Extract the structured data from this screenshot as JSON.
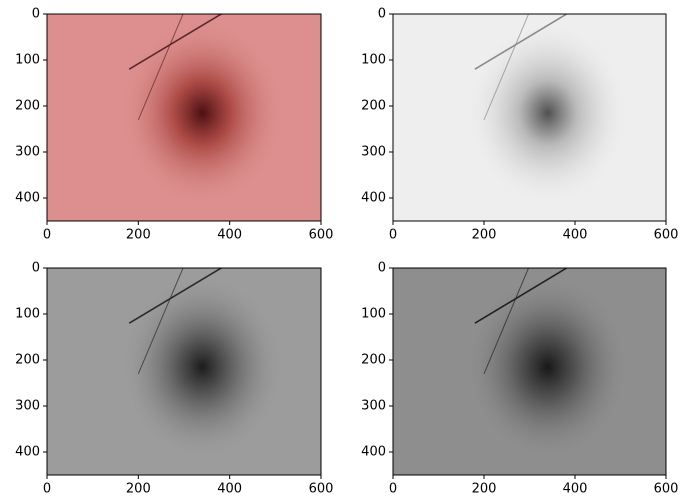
{
  "chart_data": [
    {
      "type": "image",
      "xlim": [
        0,
        600
      ],
      "ylim": [
        450,
        0
      ],
      "xticks": [
        0,
        200,
        400,
        600
      ],
      "yticks": [
        0,
        100,
        200,
        300,
        400
      ]
    },
    {
      "type": "image",
      "xlim": [
        0,
        600
      ],
      "ylim": [
        450,
        0
      ],
      "xticks": [
        0,
        200,
        400,
        600
      ],
      "yticks": [
        0,
        100,
        200,
        300,
        400
      ]
    },
    {
      "type": "image",
      "xlim": [
        0,
        600
      ],
      "ylim": [
        450,
        0
      ],
      "xticks": [
        0,
        200,
        400,
        600
      ],
      "yticks": [
        0,
        100,
        200,
        300,
        400
      ]
    },
    {
      "type": "image",
      "xlim": [
        0,
        600
      ],
      "ylim": [
        450,
        0
      ],
      "xticks": [
        0,
        200,
        400,
        600
      ],
      "yticks": [
        0,
        100,
        200,
        300,
        400
      ]
    }
  ]
}
